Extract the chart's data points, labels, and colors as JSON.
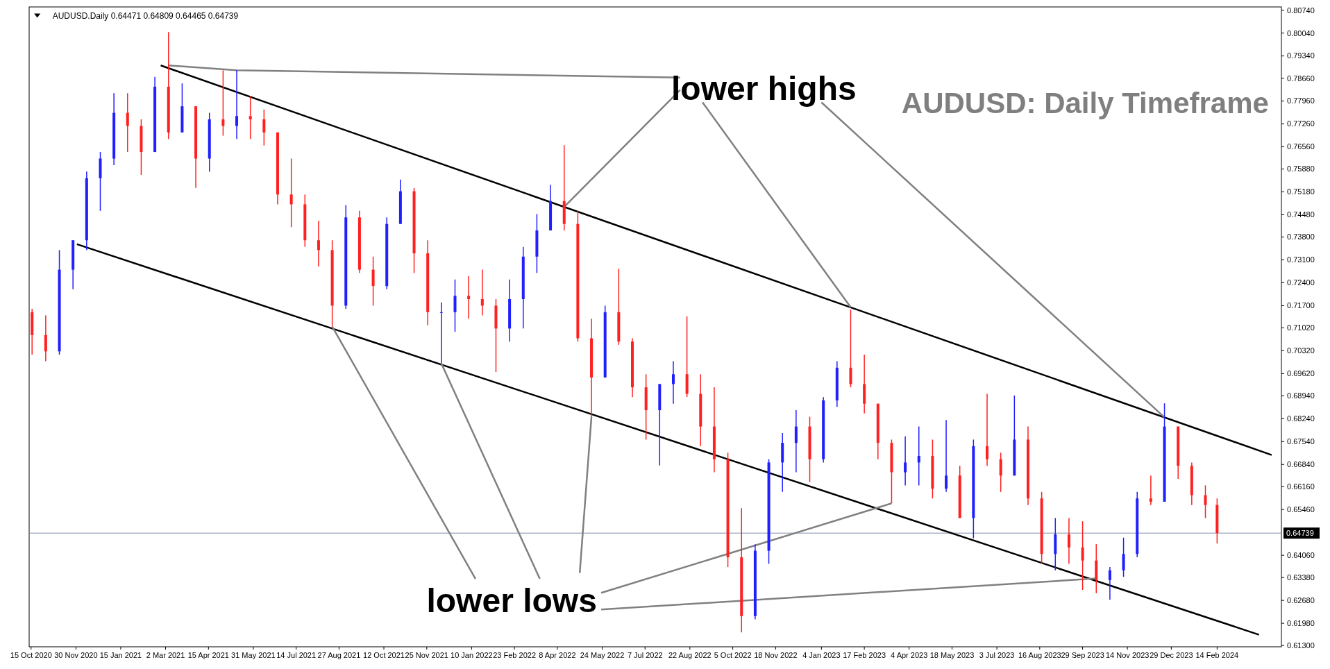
{
  "chart_data": {
    "type": "candlestick",
    "title": "AUDUSD: Daily Timeframe",
    "annotations": [
      "AUDUSD.Daily  0.64471 0.64809 0.64465 0.64739",
      "lower highs",
      "lower lows"
    ],
    "x": [
      "2020-10-16",
      "2020-10-30",
      "2020-11-13",
      "2020-11-27",
      "2020-12-11",
      "2020-12-25",
      "2021-01-08",
      "2021-01-22",
      "2021-02-05",
      "2021-02-19",
      "2021-03-05",
      "2021-03-19",
      "2021-04-02",
      "2021-04-16",
      "2021-04-30",
      "2021-05-14",
      "2021-05-28",
      "2021-06-11",
      "2021-06-25",
      "2021-07-09",
      "2021-07-23",
      "2021-08-06",
      "2021-08-20",
      "2021-09-03",
      "2021-09-17",
      "2021-10-01",
      "2021-10-15",
      "2021-10-29",
      "2021-11-12",
      "2021-11-26",
      "2021-12-10",
      "2021-12-24",
      "2022-01-07",
      "2022-01-21",
      "2022-02-04",
      "2022-02-18",
      "2022-03-04",
      "2022-03-18",
      "2022-04-01",
      "2022-04-15",
      "2022-04-29",
      "2022-05-13",
      "2022-05-27",
      "2022-06-10",
      "2022-06-24",
      "2022-07-08",
      "2022-07-22",
      "2022-08-05",
      "2022-08-19",
      "2022-09-02",
      "2022-09-16",
      "2022-09-30",
      "2022-10-14",
      "2022-10-28",
      "2022-11-11",
      "2022-11-25",
      "2022-12-09",
      "2022-12-23",
      "2023-01-06",
      "2023-01-20",
      "2023-02-03",
      "2023-02-17",
      "2023-03-03",
      "2023-03-17",
      "2023-03-31",
      "2023-04-14",
      "2023-04-28",
      "2023-05-12",
      "2023-05-26",
      "2023-06-09",
      "2023-06-23",
      "2023-07-07",
      "2023-07-21",
      "2023-08-04",
      "2023-08-18",
      "2023-09-01",
      "2023-09-15",
      "2023-09-29",
      "2023-10-13",
      "2023-10-27",
      "2023-11-10",
      "2023-11-24",
      "2023-12-08",
      "2023-12-22",
      "2024-01-05",
      "2024-01-19",
      "2024-02-02",
      "2024-02-14"
    ],
    "ohlc": [
      [
        0.715,
        0.716,
        0.702,
        0.708
      ],
      [
        0.708,
        0.714,
        0.7,
        0.703
      ],
      [
        0.703,
        0.734,
        0.702,
        0.728
      ],
      [
        0.728,
        0.737,
        0.722,
        0.737
      ],
      [
        0.737,
        0.758,
        0.734,
        0.756
      ],
      [
        0.756,
        0.764,
        0.746,
        0.762
      ],
      [
        0.762,
        0.782,
        0.76,
        0.776
      ],
      [
        0.776,
        0.782,
        0.764,
        0.772
      ],
      [
        0.772,
        0.774,
        0.757,
        0.764
      ],
      [
        0.764,
        0.787,
        0.764,
        0.784
      ],
      [
        0.784,
        0.8007,
        0.768,
        0.77
      ],
      [
        0.77,
        0.785,
        0.77,
        0.778
      ],
      [
        0.778,
        0.778,
        0.753,
        0.762
      ],
      [
        0.762,
        0.776,
        0.758,
        0.774
      ],
      [
        0.774,
        0.789,
        0.769,
        0.772
      ],
      [
        0.772,
        0.789,
        0.768,
        0.775
      ],
      [
        0.775,
        0.781,
        0.768,
        0.774
      ],
      [
        0.774,
        0.777,
        0.766,
        0.77
      ],
      [
        0.77,
        0.77,
        0.748,
        0.751
      ],
      [
        0.751,
        0.762,
        0.741,
        0.748
      ],
      [
        0.748,
        0.751,
        0.735,
        0.737
      ],
      [
        0.737,
        0.743,
        0.729,
        0.734
      ],
      [
        0.734,
        0.737,
        0.7106,
        0.717
      ],
      [
        0.717,
        0.7478,
        0.716,
        0.744
      ],
      [
        0.744,
        0.746,
        0.727,
        0.728
      ],
      [
        0.728,
        0.732,
        0.717,
        0.723
      ],
      [
        0.723,
        0.744,
        0.722,
        0.742
      ],
      [
        0.742,
        0.7556,
        0.742,
        0.752
      ],
      [
        0.752,
        0.753,
        0.727,
        0.733
      ],
      [
        0.733,
        0.737,
        0.711,
        0.715
      ],
      [
        0.715,
        0.718,
        0.6993,
        0.715
      ],
      [
        0.715,
        0.725,
        0.709,
        0.72
      ],
      [
        0.72,
        0.726,
        0.713,
        0.719
      ],
      [
        0.719,
        0.728,
        0.714,
        0.717
      ],
      [
        0.717,
        0.719,
        0.6967,
        0.71
      ],
      [
        0.71,
        0.725,
        0.706,
        0.719
      ],
      [
        0.719,
        0.735,
        0.71,
        0.732
      ],
      [
        0.732,
        0.745,
        0.727,
        0.74
      ],
      [
        0.74,
        0.754,
        0.74,
        0.749
      ],
      [
        0.749,
        0.7661,
        0.74,
        0.742
      ],
      [
        0.742,
        0.746,
        0.706,
        0.707
      ],
      [
        0.707,
        0.713,
        0.6829,
        0.695
      ],
      [
        0.695,
        0.717,
        0.695,
        0.715
      ],
      [
        0.715,
        0.7283,
        0.705,
        0.706
      ],
      [
        0.706,
        0.707,
        0.689,
        0.692
      ],
      [
        0.692,
        0.696,
        0.676,
        0.685
      ],
      [
        0.685,
        0.693,
        0.6681,
        0.693
      ],
      [
        0.693,
        0.7,
        0.687,
        0.696
      ],
      [
        0.696,
        0.7137,
        0.689,
        0.69
      ],
      [
        0.69,
        0.696,
        0.674,
        0.68
      ],
      [
        0.68,
        0.692,
        0.666,
        0.67
      ],
      [
        0.67,
        0.672,
        0.637,
        0.64
      ],
      [
        0.64,
        0.655,
        0.617,
        0.622
      ],
      [
        0.622,
        0.644,
        0.621,
        0.642
      ],
      [
        0.642,
        0.67,
        0.638,
        0.669
      ],
      [
        0.669,
        0.678,
        0.66,
        0.675
      ],
      [
        0.675,
        0.685,
        0.666,
        0.68
      ],
      [
        0.68,
        0.683,
        0.663,
        0.67
      ],
      [
        0.67,
        0.689,
        0.669,
        0.688
      ],
      [
        0.688,
        0.7,
        0.686,
        0.698
      ],
      [
        0.698,
        0.7158,
        0.692,
        0.693
      ],
      [
        0.693,
        0.702,
        0.684,
        0.687
      ],
      [
        0.687,
        0.687,
        0.67,
        0.675
      ],
      [
        0.675,
        0.676,
        0.6565,
        0.666
      ],
      [
        0.666,
        0.677,
        0.662,
        0.669
      ],
      [
        0.669,
        0.68,
        0.662,
        0.671
      ],
      [
        0.671,
        0.676,
        0.658,
        0.661
      ],
      [
        0.661,
        0.682,
        0.66,
        0.665
      ],
      [
        0.665,
        0.668,
        0.652,
        0.652
      ],
      [
        0.652,
        0.676,
        0.6458,
        0.674
      ],
      [
        0.674,
        0.69,
        0.668,
        0.67
      ],
      [
        0.67,
        0.672,
        0.66,
        0.665
      ],
      [
        0.665,
        0.6895,
        0.665,
        0.676
      ],
      [
        0.676,
        0.68,
        0.656,
        0.658
      ],
      [
        0.658,
        0.66,
        0.638,
        0.641
      ],
      [
        0.641,
        0.652,
        0.636,
        0.647
      ],
      [
        0.647,
        0.652,
        0.638,
        0.643
      ],
      [
        0.643,
        0.651,
        0.63,
        0.639
      ],
      [
        0.639,
        0.644,
        0.629,
        0.633
      ],
      [
        0.633,
        0.637,
        0.627,
        0.636
      ],
      [
        0.636,
        0.646,
        0.634,
        0.641
      ],
      [
        0.641,
        0.66,
        0.64,
        0.658
      ],
      [
        0.658,
        0.665,
        0.656,
        0.657
      ],
      [
        0.657,
        0.6871,
        0.657,
        0.68
      ],
      [
        0.68,
        0.68,
        0.664,
        0.668
      ],
      [
        0.668,
        0.669,
        0.656,
        0.659
      ],
      [
        0.659,
        0.662,
        0.652,
        0.656
      ],
      [
        0.656,
        0.658,
        0.6442,
        0.64739
      ]
    ],
    "colors": [
      "#ff2020",
      "#ff2020",
      "#2020ff",
      "#2020ff",
      "#2020ff",
      "#2020ff",
      "#2020ff",
      "#ff2020",
      "#ff2020",
      "#2020ff",
      "#ff2020",
      "#2020ff",
      "#ff2020",
      "#2020ff",
      "#ff2020",
      "#2020ff",
      "#ff2020",
      "#ff2020",
      "#ff2020",
      "#ff2020",
      "#ff2020",
      "#ff2020",
      "#ff2020",
      "#2020ff",
      "#ff2020",
      "#ff2020",
      "#2020ff",
      "#2020ff",
      "#ff2020",
      "#ff2020",
      "#2020ff",
      "#2020ff",
      "#ff2020",
      "#ff2020",
      "#ff2020",
      "#2020ff",
      "#2020ff",
      "#2020ff",
      "#2020ff",
      "#ff2020",
      "#ff2020",
      "#ff2020",
      "#2020ff",
      "#ff2020",
      "#ff2020",
      "#ff2020",
      "#2020ff",
      "#2020ff",
      "#ff2020",
      "#ff2020",
      "#ff2020",
      "#ff2020",
      "#ff2020",
      "#2020ff",
      "#2020ff",
      "#2020ff",
      "#2020ff",
      "#ff2020",
      "#2020ff",
      "#2020ff",
      "#ff2020",
      "#ff2020",
      "#ff2020",
      "#ff2020",
      "#2020ff",
      "#2020ff",
      "#ff2020",
      "#2020ff",
      "#ff2020",
      "#2020ff",
      "#ff2020",
      "#ff2020",
      "#2020ff",
      "#ff2020",
      "#ff2020",
      "#2020ff",
      "#ff2020",
      "#ff2020",
      "#ff2020",
      "#2020ff",
      "#2020ff",
      "#2020ff",
      "#ff2020",
      "#2020ff",
      "#ff2020",
      "#ff2020",
      "#ff2020",
      "#ff2020"
    ],
    "series": [
      {
        "type": "line",
        "color": "#000000",
        "x": [
          "2021-02-25",
          "2024-04-10"
        ],
        "values": [
          0.7905,
          0.6713
        ]
      },
      {
        "type": "line",
        "color": "#000000",
        "x": [
          "2020-12-01",
          "2024-03-28"
        ],
        "values": [
          0.7358,
          0.6163
        ]
      },
      {
        "type": "line",
        "color": "#808080",
        "x": [
          "2021-03-05",
          "2021-05-14",
          "2022-08-12"
        ],
        "values": [
          0.7905,
          0.789,
          0.7868
        ]
      },
      {
        "type": "line",
        "color": "#808080",
        "x": [
          "2022-08-12",
          "2022-04-15"
        ],
        "values": [
          0.783,
          0.7472
        ]
      },
      {
        "type": "line",
        "color": "#808080",
        "x": [
          "2022-09-04",
          "2023-02-03"
        ],
        "values": [
          0.7792,
          0.7165
        ]
      },
      {
        "type": "line",
        "color": "#808080",
        "x": [
          "2023-01-04",
          "2023-12-22"
        ],
        "values": [
          0.7792,
          0.6828
        ]
      },
      {
        "type": "line",
        "color": "#808080",
        "x": [
          "2021-08-20",
          "2022-01-14"
        ],
        "values": [
          0.7106,
          0.6334
        ]
      },
      {
        "type": "line",
        "color": "#808080",
        "x": [
          "2021-12-10",
          "2022-03-21"
        ],
        "values": [
          0.6993,
          0.6334
        ]
      },
      {
        "type": "line",
        "color": "#808080",
        "x": [
          "2022-05-13",
          "2022-05-01"
        ],
        "values": [
          0.6829,
          0.6352
        ]
      },
      {
        "type": "line",
        "color": "#808080",
        "x": [
          "2022-05-23",
          "2023-03-17"
        ],
        "values": [
          0.6291,
          0.6565
        ]
      },
      {
        "type": "line",
        "color": "#808080",
        "x": [
          "2022-05-23",
          "2023-10-13"
        ],
        "values": [
          0.624,
          0.6335
        ]
      }
    ],
    "xlim": [
      "2020-10-13",
      "2024-04-20"
    ],
    "xticks": [
      {
        "value": "2020-10-15",
        "label": "15 Oct 2020"
      },
      {
        "value": "2020-11-30",
        "label": "30 Nov 2020"
      },
      {
        "value": "2021-01-15",
        "label": "15 Jan 2021"
      },
      {
        "value": "2021-03-02",
        "label": "2 Mar 2021"
      },
      {
        "value": "2021-04-15",
        "label": "15 Apr 2021"
      },
      {
        "value": "2021-05-31",
        "label": "31 May 2021"
      },
      {
        "value": "2021-07-14",
        "label": "14 Jul 2021"
      },
      {
        "value": "2021-08-27",
        "label": "27 Aug 2021"
      },
      {
        "value": "2021-10-12",
        "label": "12 Oct 2021"
      },
      {
        "value": "2021-11-25",
        "label": "25 Nov 2021"
      },
      {
        "value": "2022-01-10",
        "label": "10 Jan 2022"
      },
      {
        "value": "2022-02-23",
        "label": "23 Feb 2022"
      },
      {
        "value": "2022-04-08",
        "label": "8 Apr 2022"
      },
      {
        "value": "2022-05-24",
        "label": "24 May 2022"
      },
      {
        "value": "2022-07-07",
        "label": "7 Jul 2022"
      },
      {
        "value": "2022-08-22",
        "label": "22 Aug 2022"
      },
      {
        "value": "2022-10-05",
        "label": "5 Oct 2022"
      },
      {
        "value": "2022-11-18",
        "label": "18 Nov 2022"
      },
      {
        "value": "2023-01-04",
        "label": "4 Jan 2023"
      },
      {
        "value": "2023-02-17",
        "label": "17 Feb 2023"
      },
      {
        "value": "2023-04-04",
        "label": "4 Apr 2023"
      },
      {
        "value": "2023-05-18",
        "label": "18 May 2023"
      },
      {
        "value": "2023-07-03",
        "label": "3 Jul 2023"
      },
      {
        "value": "2023-08-16",
        "label": "16 Aug 2023"
      },
      {
        "value": "2023-09-29",
        "label": "29 Sep 2023"
      },
      {
        "value": "2023-11-14",
        "label": "14 Nov 2023"
      },
      {
        "value": "2023-12-29",
        "label": "29 Dec 2023"
      },
      {
        "value": "2024-02-14",
        "label": "14 Feb 2024"
      }
    ],
    "ylim": [
      0.6126,
      0.8084
    ],
    "yticks": [
      {
        "value": 0.8074,
        "label": "0.80740"
      },
      {
        "value": 0.8004,
        "label": "0.80040"
      },
      {
        "value": 0.7934,
        "label": "0.79340"
      },
      {
        "value": 0.7866,
        "label": "0.78660"
      },
      {
        "value": 0.7796,
        "label": "0.77960"
      },
      {
        "value": 0.7726,
        "label": "0.77260"
      },
      {
        "value": 0.7656,
        "label": "0.76560"
      },
      {
        "value": 0.7588,
        "label": "0.75880"
      },
      {
        "value": 0.7518,
        "label": "0.75180"
      },
      {
        "value": 0.7448,
        "label": "0.74480"
      },
      {
        "value": 0.738,
        "label": "0.73800"
      },
      {
        "value": 0.731,
        "label": "0.73100"
      },
      {
        "value": 0.724,
        "label": "0.72400"
      },
      {
        "value": 0.717,
        "label": "0.71700"
      },
      {
        "value": 0.7102,
        "label": "0.71020"
      },
      {
        "value": 0.7032,
        "label": "0.70320"
      },
      {
        "value": 0.6962,
        "label": "0.69620"
      },
      {
        "value": 0.6894,
        "label": "0.68940"
      },
      {
        "value": 0.6824,
        "label": "0.68240"
      },
      {
        "value": 0.6754,
        "label": "0.67540"
      },
      {
        "value": 0.6684,
        "label": "0.66840"
      },
      {
        "value": 0.6616,
        "label": "0.66160"
      },
      {
        "value": 0.6546,
        "label": "0.65460"
      },
      {
        "value": 0.6406,
        "label": "0.64060"
      },
      {
        "value": 0.6338,
        "label": "0.63380"
      },
      {
        "value": 0.6268,
        "label": "0.62680"
      },
      {
        "value": 0.6198,
        "label": "0.61980"
      },
      {
        "value": 0.613,
        "label": "0.61300"
      }
    ],
    "ref_lines": [
      {
        "axis": "y",
        "value": 0.64739,
        "label": "0.64739",
        "color": "#8090a8"
      }
    ],
    "grid": false
  }
}
